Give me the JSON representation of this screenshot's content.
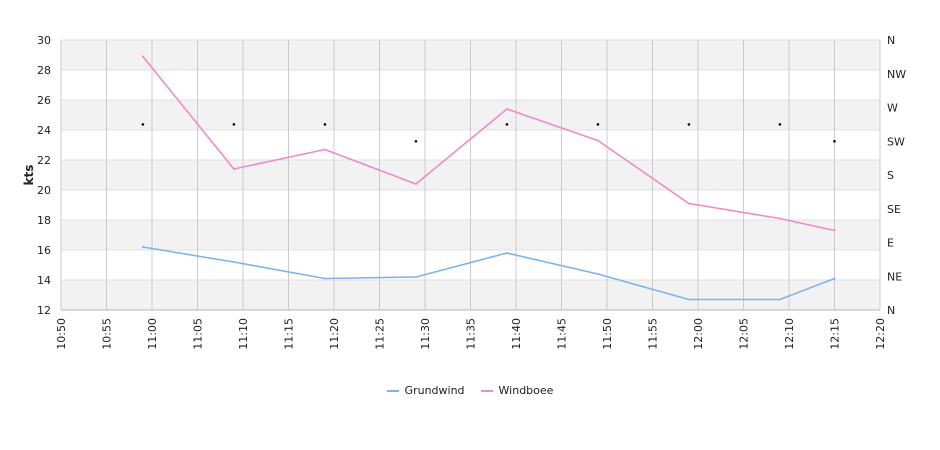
{
  "chart_data": {
    "type": "line",
    "ylabel": "kts",
    "ylim": [
      12,
      30
    ],
    "yticks": [
      "12",
      "14",
      "16",
      "18",
      "20",
      "22",
      "24",
      "26",
      "28",
      "30"
    ],
    "xlim": [
      "10:50",
      "12:20"
    ],
    "xticks": [
      "10:50",
      "10:55",
      "11:00",
      "11:05",
      "11:10",
      "11:15",
      "11:20",
      "11:25",
      "11:30",
      "11:35",
      "11:40",
      "11:45",
      "11:50",
      "11:55",
      "12:00",
      "12:05",
      "12:10",
      "12:15",
      "12:20"
    ],
    "direction_axis": [
      "N",
      "NE",
      "E",
      "SE",
      "S",
      "SW",
      "W",
      "NW",
      "N"
    ],
    "grid": true,
    "legend_position": "bottom",
    "series": [
      {
        "name": "Grundwind",
        "color": "#7cb5ec",
        "x": [
          "10:59",
          "11:09",
          "11:19",
          "11:29",
          "11:39",
          "11:49",
          "11:59",
          "12:09",
          "12:15"
        ],
        "values": [
          16.2,
          15.2,
          14.1,
          14.2,
          15.8,
          14.4,
          12.7,
          12.7,
          14.1
        ]
      },
      {
        "name": "Windboee",
        "color": "#f08cc0",
        "x": [
          "10:59",
          "11:09",
          "11:19",
          "11:29",
          "11:39",
          "11:49",
          "11:59",
          "12:09",
          "12:15"
        ],
        "values": [
          28.9,
          21.4,
          22.7,
          20.4,
          25.4,
          23.3,
          19.1,
          18.1,
          17.3
        ]
      }
    ],
    "direction_points": {
      "x": [
        "10:59",
        "11:09",
        "11:19",
        "11:29",
        "11:39",
        "11:49",
        "11:59",
        "12:09",
        "12:15"
      ],
      "values": [
        "SW-W",
        "SW-W",
        "SW-W",
        "SW",
        "SW-W",
        "SW-W",
        "SW-W",
        "SW-W",
        "SW"
      ],
      "level": [
        5.5,
        5.5,
        5.5,
        5.0,
        5.5,
        5.5,
        5.5,
        5.5,
        5.0
      ]
    }
  }
}
